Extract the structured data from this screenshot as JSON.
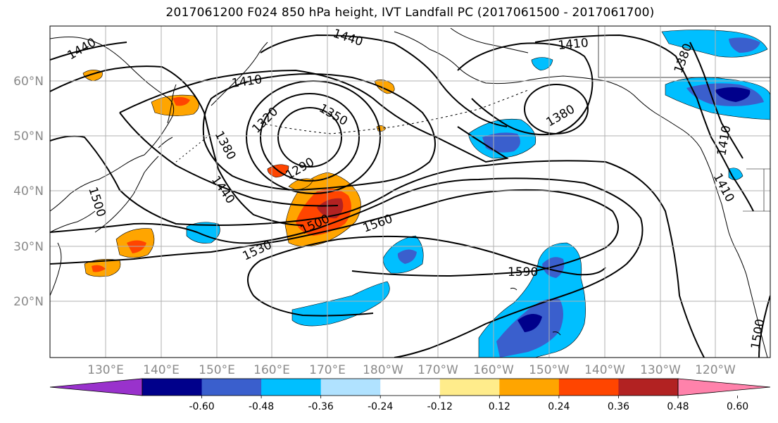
{
  "title": "2017061200 F024 850 hPa height, IVT Landfall PC (2017061500 - 2017061700)",
  "latitude_labels": [
    "60°N",
    "50°N",
    "40°N",
    "30°N",
    "20°N"
  ],
  "longitude_labels": [
    "130°E",
    "140°E",
    "150°E",
    "160°E",
    "170°E",
    "180°W",
    "170°W",
    "160°W",
    "150°W",
    "140°W",
    "130°W",
    "120°W"
  ],
  "contour_labels": [
    "1440",
    "1440",
    "1410",
    "1410",
    "1380",
    "1380",
    "1350",
    "1320",
    "1290",
    "1380",
    "1440",
    "1500",
    "1500",
    "1530",
    "1560",
    "1590",
    "1410",
    "1410",
    "1500"
  ],
  "colorbar": {
    "ticks": [
      "-0.60",
      "-0.48",
      "-0.36",
      "-0.24",
      "-0.12",
      "0.12",
      "0.24",
      "0.36",
      "0.48",
      "0.60"
    ],
    "colors": [
      "#9932cc",
      "#00008b",
      "#3a5fcd",
      "#00bfff",
      "#b0e2ff",
      "#ffffff",
      "#ffec8b",
      "#ffa500",
      "#ff4500",
      "#b22222",
      "#ff82ab"
    ]
  }
}
